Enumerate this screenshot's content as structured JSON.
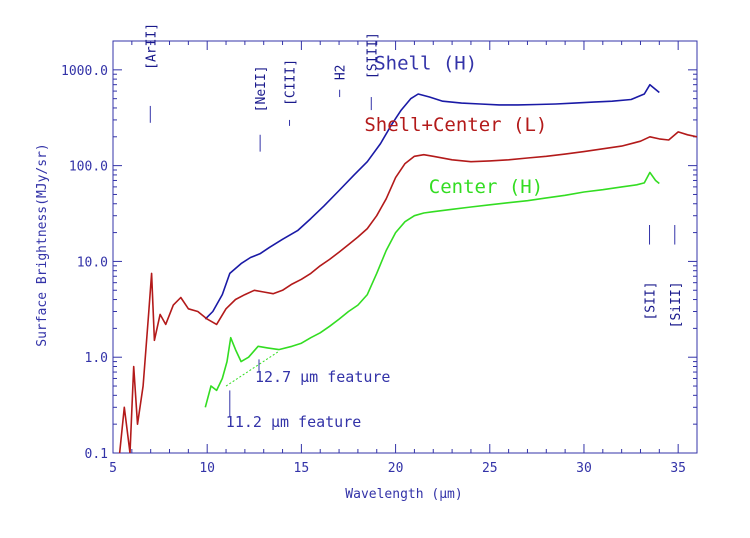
{
  "chart_data": {
    "type": "line",
    "title": "",
    "xlabel": "Wavelength (μm)",
    "ylabel": "Surface Brightness(MJy/sr)",
    "xlim": [
      5,
      36
    ],
    "ylim": [
      0.1,
      2000
    ],
    "yscale": "log",
    "grid": false,
    "colors": {
      "axis": "#3333a8",
      "shell": "#1a1aa6",
      "total": "#b31a1a",
      "center": "#33dd22"
    },
    "x_ticks": [
      5,
      10,
      15,
      20,
      25,
      30,
      35
    ],
    "x_tick_labels": [
      "5",
      "10",
      "15",
      "20",
      "25",
      "30",
      "35"
    ],
    "y_ticks": [
      0.1,
      1,
      10,
      100,
      1000
    ],
    "y_tick_labels": [
      "0.1",
      "1.0",
      "10.0",
      "100.0",
      "1000.0"
    ],
    "series": [
      {
        "name": "Shell (H)",
        "key": "shell",
        "x": [
          9.9,
          10.3,
          10.8,
          11.2,
          11.8,
          12.3,
          12.8,
          13.3,
          14.0,
          14.8,
          15.5,
          16.2,
          17.0,
          17.8,
          18.5,
          19.2,
          19.8,
          20.3,
          20.8,
          21.2,
          21.8,
          22.5,
          23.5,
          24.5,
          25.5,
          26.5,
          27.5,
          28.5,
          29.5,
          30.5,
          31.5,
          32.5,
          33.2,
          33.5,
          34.0
        ],
        "y": [
          2.5,
          3.0,
          4.5,
          7.5,
          9.5,
          11.0,
          12.0,
          14.0,
          17.0,
          21.0,
          28.0,
          38.0,
          55.0,
          80.0,
          110.0,
          170.0,
          270.0,
          380.0,
          500.0,
          560.0,
          520.0,
          470.0,
          450.0,
          440.0,
          430.0,
          430.0,
          435.0,
          440.0,
          450.0,
          460.0,
          470.0,
          490.0,
          560.0,
          700.0,
          580.0
        ]
      },
      {
        "name": "Shell+Center (L)",
        "key": "total",
        "x": [
          5.3,
          5.6,
          5.9,
          6.1,
          6.3,
          6.6,
          6.9,
          7.05,
          7.2,
          7.5,
          7.8,
          8.2,
          8.6,
          9.0,
          9.5,
          10.0,
          10.5,
          11.0,
          11.5,
          12.0,
          12.5,
          13.0,
          13.5,
          14.0,
          14.5,
          15.0,
          15.5,
          16.0,
          16.5,
          17.0,
          17.5,
          18.0,
          18.5,
          19.0,
          19.5,
          20.0,
          20.5,
          21.0,
          21.5,
          22.0,
          23.0,
          24.0,
          25.0,
          26.0,
          27.0,
          28.0,
          29.0,
          30.0,
          31.0,
          32.0,
          33.0,
          33.5,
          34.0,
          34.5,
          35.0,
          35.5,
          36.0
        ],
        "y": [
          0.08,
          0.3,
          0.1,
          0.8,
          0.2,
          0.5,
          3.0,
          7.5,
          1.5,
          2.8,
          2.2,
          3.5,
          4.2,
          3.2,
          3.0,
          2.5,
          2.2,
          3.2,
          4.0,
          4.5,
          5.0,
          4.8,
          4.6,
          5.0,
          5.8,
          6.5,
          7.5,
          9.0,
          10.5,
          12.5,
          15.0,
          18.0,
          22.0,
          30.0,
          45.0,
          75.0,
          105.0,
          125.0,
          130.0,
          125.0,
          115.0,
          110.0,
          112.0,
          115.0,
          120.0,
          125.0,
          132.0,
          140.0,
          150.0,
          160.0,
          180.0,
          200.0,
          190.0,
          185.0,
          225.0,
          210.0,
          200.0
        ]
      },
      {
        "name": "Center (H)",
        "key": "center",
        "x": [
          9.9,
          10.2,
          10.5,
          10.8,
          11.05,
          11.25,
          11.5,
          11.8,
          12.2,
          12.7,
          13.2,
          13.8,
          14.5,
          15.0,
          15.5,
          16.0,
          16.5,
          17.0,
          17.5,
          18.0,
          18.5,
          19.0,
          19.5,
          20.0,
          20.5,
          21.0,
          21.5,
          22.0,
          23.0,
          24.0,
          25.0,
          26.0,
          27.0,
          28.0,
          29.0,
          30.0,
          31.0,
          32.0,
          32.8,
          33.2,
          33.5,
          33.8,
          34.0
        ],
        "y": [
          0.3,
          0.5,
          0.45,
          0.6,
          0.9,
          1.6,
          1.2,
          0.9,
          1.0,
          1.3,
          1.25,
          1.2,
          1.3,
          1.4,
          1.6,
          1.8,
          2.1,
          2.5,
          3.0,
          3.5,
          4.5,
          7.5,
          13.0,
          20.0,
          26.0,
          30.0,
          32.0,
          33.0,
          35.0,
          37.0,
          39.0,
          41.0,
          43.0,
          46.0,
          49.0,
          53.0,
          56.0,
          60.0,
          63.0,
          66.0,
          85.0,
          70.0,
          65.0
        ]
      }
    ],
    "series_labels": [
      {
        "text": "Shell (H)",
        "x": 21.6,
        "y": 1010,
        "color": "#3333a8"
      },
      {
        "text": "Shell+Center (L)",
        "x": 23.2,
        "y": 230,
        "color": "#b31a1a"
      },
      {
        "text": "Center (H)",
        "x": 24.8,
        "y": 52,
        "color": "#33dd22"
      }
    ],
    "line_markers": [
      {
        "text": "[ArII]",
        "x": 6.98,
        "y_top": 1000,
        "tick_from": 280,
        "tick_to": 420,
        "position": "top"
      },
      {
        "text": "[NeII]",
        "x": 12.81,
        "y_top": 360,
        "tick_from": 140,
        "tick_to": 210,
        "position": "top"
      },
      {
        "text": "[CIII]",
        "x": 14.37,
        "y_top": 420,
        "tick_from": 260,
        "tick_to": 300,
        "position": "top"
      },
      {
        "text": "H2",
        "x": 17.03,
        "y_top": 780,
        "tick_from": 520,
        "tick_to": 620,
        "position": "top"
      },
      {
        "text": "[SIII]",
        "x": 18.71,
        "y_top": 800,
        "tick_from": 380,
        "tick_to": 520,
        "position": "top"
      },
      {
        "text": "[SII]",
        "x": 33.48,
        "y_top": 7.5,
        "tick_from": 15,
        "tick_to": 24,
        "position": "bottom"
      },
      {
        "text": "[SiII]",
        "x": 34.82,
        "y_top": 7.5,
        "tick_from": 15,
        "tick_to": 24,
        "position": "bottom"
      }
    ],
    "annotations": [
      {
        "text": "12.7 μm feature",
        "x": 12.75,
        "y": 0.62
      },
      {
        "text": "11.2 μm feature",
        "x": 11.2,
        "y": 0.21
      }
    ]
  }
}
